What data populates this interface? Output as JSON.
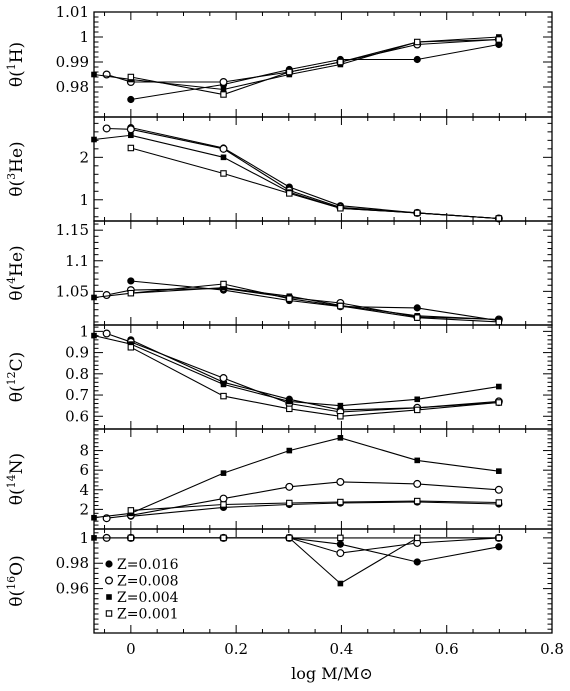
{
  "chart_data": {
    "type": "line",
    "xlabel": "log M/M⊙",
    "xlim": [
      -0.07,
      0.8
    ],
    "x_ticks": [
      {
        "v": 0,
        "label": "0"
      },
      {
        "v": 0.2,
        "label": "0.2"
      },
      {
        "v": 0.4,
        "label": "0.4"
      },
      {
        "v": 0.6,
        "label": "0.6"
      },
      {
        "v": 0.8,
        "label": "0.8"
      }
    ],
    "legend": {
      "placement": "bottom-left of bottom panel",
      "entries": [
        {
          "label": "Z=0.016",
          "marker": "filled-circle"
        },
        {
          "label": "Z=0.008",
          "marker": "open-circle"
        },
        {
          "label": "Z=0.004",
          "marker": "filled-square"
        },
        {
          "label": "Z=0.001",
          "marker": "open-square"
        }
      ]
    },
    "panels": [
      {
        "ylabel": {
          "base": "θ(",
          "sup": "1",
          "el": "H)"
        },
        "ylim": [
          0.968,
          1.01
        ],
        "y_ticks": [
          {
            "v": 0.98,
            "label": "0.98"
          },
          {
            "v": 0.99,
            "label": "0.99"
          },
          {
            "v": 1.0,
            "label": "1"
          },
          {
            "v": 1.01,
            "label": "1.01"
          }
        ],
        "series": [
          {
            "marker": "filled-circle",
            "x": [
              0,
              0.176,
              0.301,
              0.398,
              0.544,
              0.699
            ],
            "y": [
              0.975,
              0.981,
              0.987,
              0.991,
              0.991,
              0.997
            ]
          },
          {
            "marker": "open-circle",
            "x": [
              -0.046,
              0,
              0.176,
              0.301,
              0.398,
              0.544,
              0.699
            ],
            "y": [
              0.985,
              0.982,
              0.982,
              0.986,
              0.99,
              0.997,
              0.999
            ]
          },
          {
            "marker": "filled-square",
            "x": [
              -0.07,
              0,
              0.176,
              0.301,
              0.398,
              0.544,
              0.699
            ],
            "y": [
              0.985,
              0.983,
              0.979,
              0.985,
              0.989,
              0.998,
              1.0
            ]
          },
          {
            "marker": "open-square",
            "x": [
              0,
              0.176,
              0.301,
              0.398,
              0.544,
              0.699
            ],
            "y": [
              0.984,
              0.977,
              0.986,
              0.99,
              0.998,
              0.999
            ]
          }
        ]
      },
      {
        "ylabel": {
          "base": "θ(",
          "sup": "3",
          "el": "He)"
        },
        "ylim": [
          0.5,
          2.95
        ],
        "y_ticks": [
          {
            "v": 1,
            "label": "1"
          },
          {
            "v": 2,
            "label": "2"
          }
        ],
        "series": [
          {
            "marker": "filled-circle",
            "x": [
              0,
              0.176,
              0.301,
              0.398,
              0.544,
              0.699
            ],
            "y": [
              2.7,
              2.22,
              1.3,
              0.86,
              0.69,
              0.56
            ]
          },
          {
            "marker": "open-circle",
            "x": [
              -0.046,
              0,
              0.176,
              0.301,
              0.398,
              0.544,
              0.699
            ],
            "y": [
              2.68,
              2.66,
              2.2,
              1.22,
              0.82,
              0.69,
              0.56
            ]
          },
          {
            "marker": "filled-square",
            "x": [
              -0.07,
              0,
              0.176,
              0.301,
              0.398,
              0.544,
              0.699
            ],
            "y": [
              2.42,
              2.52,
              2.0,
              1.18,
              0.8,
              0.69,
              0.56
            ]
          },
          {
            "marker": "open-square",
            "x": [
              0,
              0.176,
              0.301,
              0.398,
              0.544,
              0.699
            ],
            "y": [
              2.22,
              1.62,
              1.15,
              0.8,
              0.69,
              0.56
            ]
          }
        ]
      },
      {
        "ylabel": {
          "base": "θ(",
          "sup": "4",
          "el": "He)"
        },
        "ylim": [
          0.995,
          1.165
        ],
        "y_ticks": [
          {
            "v": 1.05,
            "label": "1.05"
          },
          {
            "v": 1.1,
            "label": "1.1"
          },
          {
            "v": 1.15,
            "label": "1.15"
          }
        ],
        "series": [
          {
            "marker": "filled-circle",
            "x": [
              0,
              0.176,
              0.301,
              0.398,
              0.544,
              0.699
            ],
            "y": [
              1.067,
              1.052,
              1.035,
              1.025,
              1.023,
              1.002
            ]
          },
          {
            "marker": "open-circle",
            "x": [
              -0.046,
              0,
              0.176,
              0.301,
              0.398,
              0.544,
              0.699
            ],
            "y": [
              1.044,
              1.052,
              1.055,
              1.04,
              1.031,
              1.008,
              1.004
            ]
          },
          {
            "marker": "filled-square",
            "x": [
              -0.07,
              0,
              0.176,
              0.301,
              0.398,
              0.544,
              0.699
            ],
            "y": [
              1.04,
              1.047,
              1.056,
              1.042,
              1.027,
              1.01,
              1.004
            ]
          },
          {
            "marker": "open-square",
            "x": [
              0,
              0.176,
              0.301,
              0.398,
              0.544,
              0.699
            ],
            "y": [
              1.047,
              1.062,
              1.038,
              1.026,
              1.007,
              1.0
            ]
          }
        ]
      },
      {
        "ylabel": {
          "base": "θ(",
          "sup": "12",
          "el": "C)"
        },
        "ylim": [
          0.54,
          1.03
        ],
        "y_ticks": [
          {
            "v": 0.6,
            "label": "0.6"
          },
          {
            "v": 0.7,
            "label": "0.7"
          },
          {
            "v": 0.8,
            "label": "0.8"
          },
          {
            "v": 0.9,
            "label": "0.9"
          },
          {
            "v": 1.0,
            "label": "1"
          }
        ],
        "series": [
          {
            "marker": "filled-circle",
            "x": [
              0,
              0.176,
              0.301,
              0.398,
              0.544,
              0.699
            ],
            "y": [
              0.96,
              0.76,
              0.68,
              0.63,
              0.64,
              0.665
            ]
          },
          {
            "marker": "open-circle",
            "x": [
              -0.046,
              0,
              0.176,
              0.301,
              0.398,
              0.544,
              0.699
            ],
            "y": [
              0.99,
              0.95,
              0.78,
              0.66,
              0.62,
              0.64,
              0.67
            ]
          },
          {
            "marker": "filled-square",
            "x": [
              -0.07,
              0,
              0.176,
              0.301,
              0.398,
              0.544,
              0.699
            ],
            "y": [
              0.98,
              0.94,
              0.75,
              0.67,
              0.65,
              0.68,
              0.74
            ]
          },
          {
            "marker": "open-square",
            "x": [
              0,
              0.176,
              0.301,
              0.398,
              0.544,
              0.699
            ],
            "y": [
              0.925,
              0.695,
              0.635,
              0.6,
              0.63,
              0.665
            ]
          }
        ]
      },
      {
        "ylabel": {
          "base": "θ(",
          "sup": "14",
          "el": "N)"
        },
        "ylim": [
          0,
          10.2
        ],
        "y_ticks": [
          {
            "v": 2,
            "label": "2"
          },
          {
            "v": 4,
            "label": "4"
          },
          {
            "v": 6,
            "label": "6"
          },
          {
            "v": 8,
            "label": "8"
          }
        ],
        "series": [
          {
            "marker": "filled-circle",
            "x": [
              0,
              0.176,
              0.301,
              0.398,
              0.544,
              0.699
            ],
            "y": [
              1.3,
              2.2,
              2.5,
              2.65,
              2.75,
              2.55
            ]
          },
          {
            "marker": "open-circle",
            "x": [
              -0.046,
              0,
              0.176,
              0.301,
              0.398,
              0.544,
              0.699
            ],
            "y": [
              1.1,
              1.4,
              3.1,
              4.3,
              4.8,
              4.6,
              4.0
            ]
          },
          {
            "marker": "filled-square",
            "x": [
              -0.07,
              0,
              0.176,
              0.301,
              0.398,
              0.544,
              0.699
            ],
            "y": [
              1.15,
              1.6,
              5.7,
              8.0,
              9.3,
              7.0,
              5.9
            ]
          },
          {
            "marker": "open-square",
            "x": [
              0,
              0.176,
              0.301,
              0.398,
              0.544,
              0.699
            ],
            "y": [
              1.9,
              2.5,
              2.65,
              2.75,
              2.85,
              2.7
            ]
          }
        ]
      },
      {
        "ylabel": {
          "base": "θ(",
          "sup": "16",
          "el": "O)"
        },
        "ylim": [
          0.925,
          1.007
        ],
        "y_ticks": [
          {
            "v": 0.96,
            "label": "0.96"
          },
          {
            "v": 0.98,
            "label": "0.98"
          },
          {
            "v": 1.0,
            "label": "1"
          }
        ],
        "series": [
          {
            "marker": "filled-circle",
            "x": [
              0,
              0.176,
              0.301,
              0.398,
              0.544,
              0.699
            ],
            "y": [
              1.0,
              1.0,
              1.0,
              0.995,
              0.981,
              0.993
            ]
          },
          {
            "marker": "open-circle",
            "x": [
              -0.046,
              0,
              0.176,
              0.301,
              0.398,
              0.544,
              0.699
            ],
            "y": [
              1.0,
              1.0,
              1.0,
              1.0,
              0.988,
              0.996,
              1.0
            ]
          },
          {
            "marker": "filled-square",
            "x": [
              -0.07,
              0,
              0.176,
              0.301,
              0.398,
              0.544,
              0.699
            ],
            "y": [
              1.0,
              1.0,
              1.0,
              1.0,
              0.964,
              1.0,
              1.0
            ]
          },
          {
            "marker": "open-square",
            "x": [
              0,
              0.176,
              0.301,
              0.398,
              0.544,
              0.699
            ],
            "y": [
              1.0,
              1.0,
              1.0,
              1.0,
              1.0,
              1.0
            ]
          }
        ]
      }
    ]
  }
}
